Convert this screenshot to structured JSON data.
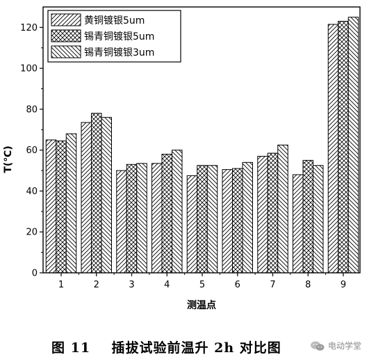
{
  "chart_data": {
    "type": "bar",
    "xlabel": "测温点",
    "ylabel": "T(℃)",
    "categories": [
      "1",
      "2",
      "3",
      "4",
      "5",
      "6",
      "7",
      "8",
      "9"
    ],
    "ylim": [
      0,
      130
    ],
    "yticks": [
      0,
      20,
      40,
      60,
      80,
      100,
      120
    ],
    "legend_position": "top-left",
    "series": [
      {
        "name": "黄铜镀银5um",
        "hatch": "forward-diagonal",
        "values": [
          65,
          73.5,
          50,
          53.5,
          47.5,
          50.5,
          57,
          48,
          121.5
        ]
      },
      {
        "name": "锡青铜镀银5um",
        "hatch": "cross-diagonal",
        "values": [
          64.5,
          78,
          53,
          58,
          52.5,
          51,
          58.5,
          55,
          123
        ]
      },
      {
        "name": "锡青铜镀银3um",
        "hatch": "back-diagonal",
        "values": [
          68,
          76,
          53.5,
          60,
          52.5,
          54,
          62.5,
          52.5,
          125
        ]
      }
    ]
  },
  "caption": "图 11    插拔试验前温升 2h 对比图",
  "watermark": {
    "text": "电动学堂",
    "icon": "wechat-icon"
  }
}
